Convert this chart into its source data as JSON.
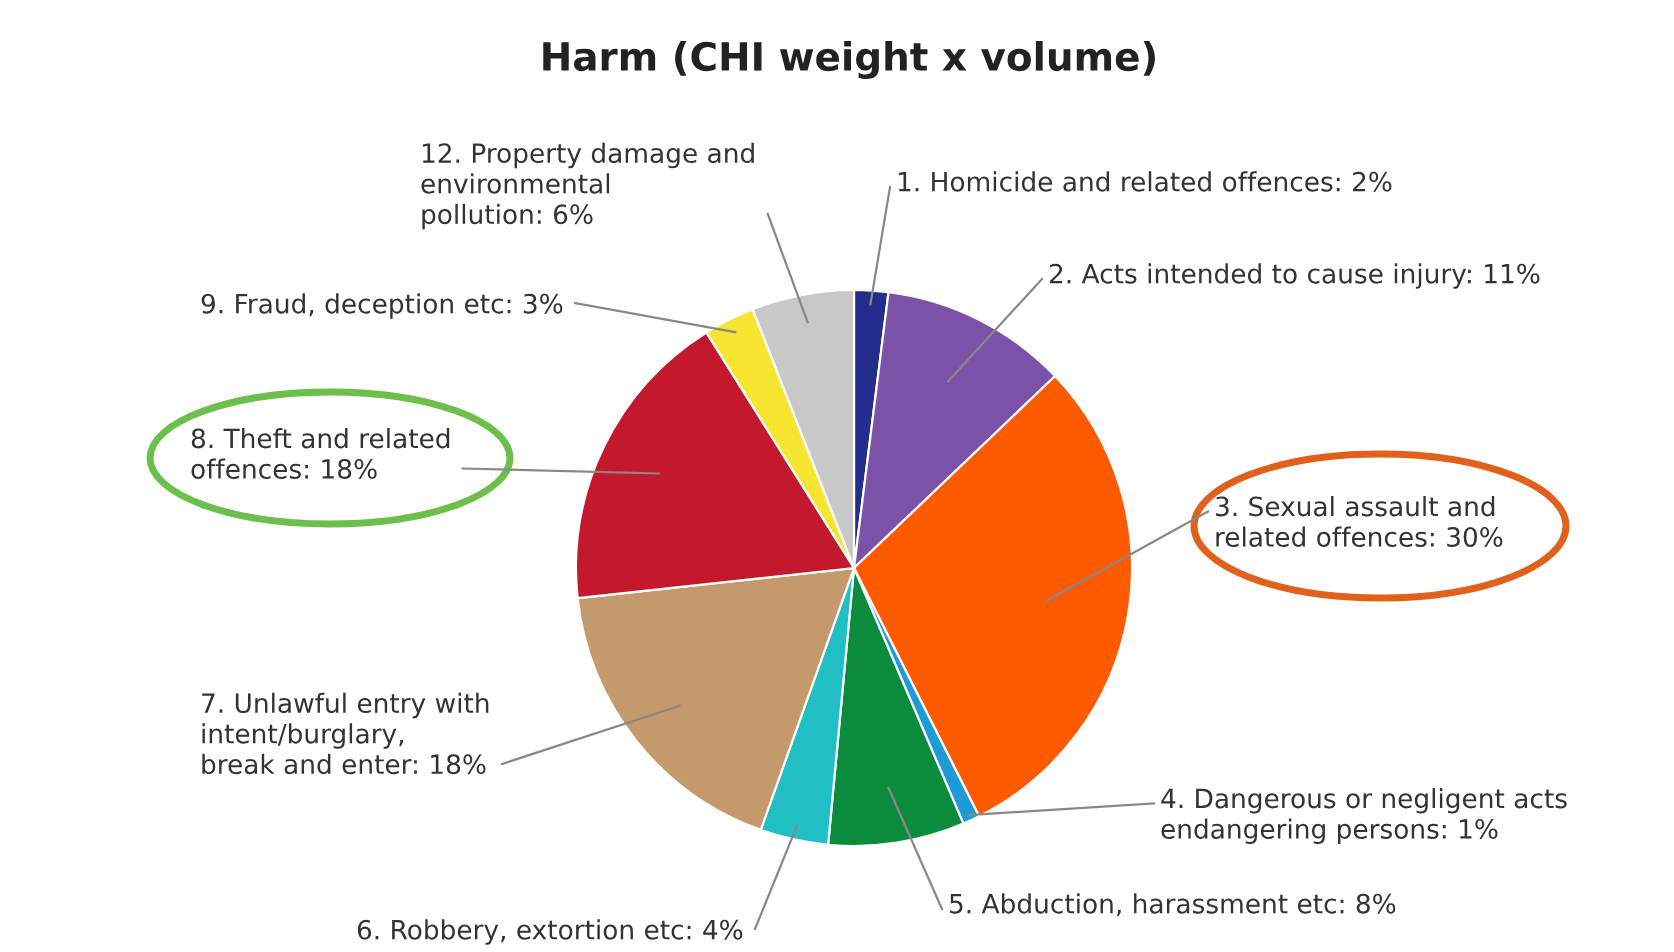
{
  "chart_data": {
    "type": "pie",
    "title": "Harm (CHI weight x volume)",
    "categories": [
      "1. Homicide and related offences",
      "2. Acts intended to cause injury",
      "3. Sexual assault and\nrelated offences",
      "4. Dangerous or negligent acts\nendangering persons",
      "5. Abduction, harassment etc",
      "6. Robbery, extortion etc",
      "7. Unlawful entry with\nintent/burglary,\nbreak and enter",
      "8. Theft and related\noffences",
      "9. Fraud, deception etc",
      "12. Property damage and\nenvironmental\npollution"
    ],
    "values": [
      2,
      11,
      30,
      1,
      8,
      4,
      18,
      18,
      3,
      6
    ],
    "value_labels": [
      "2%",
      "11%",
      "30%",
      "1%",
      "8%",
      "4%",
      "18%",
      "18%",
      "3%",
      "6%"
    ],
    "colors": [
      "#232d8c",
      "#7b52a8",
      "#ff5a00",
      "#1e9ad6",
      "#0b8c3c",
      "#20bfc4",
      "#c49a6c",
      "#c4192c",
      "#f5e52e",
      "#c8c8c8"
    ]
  }
}
